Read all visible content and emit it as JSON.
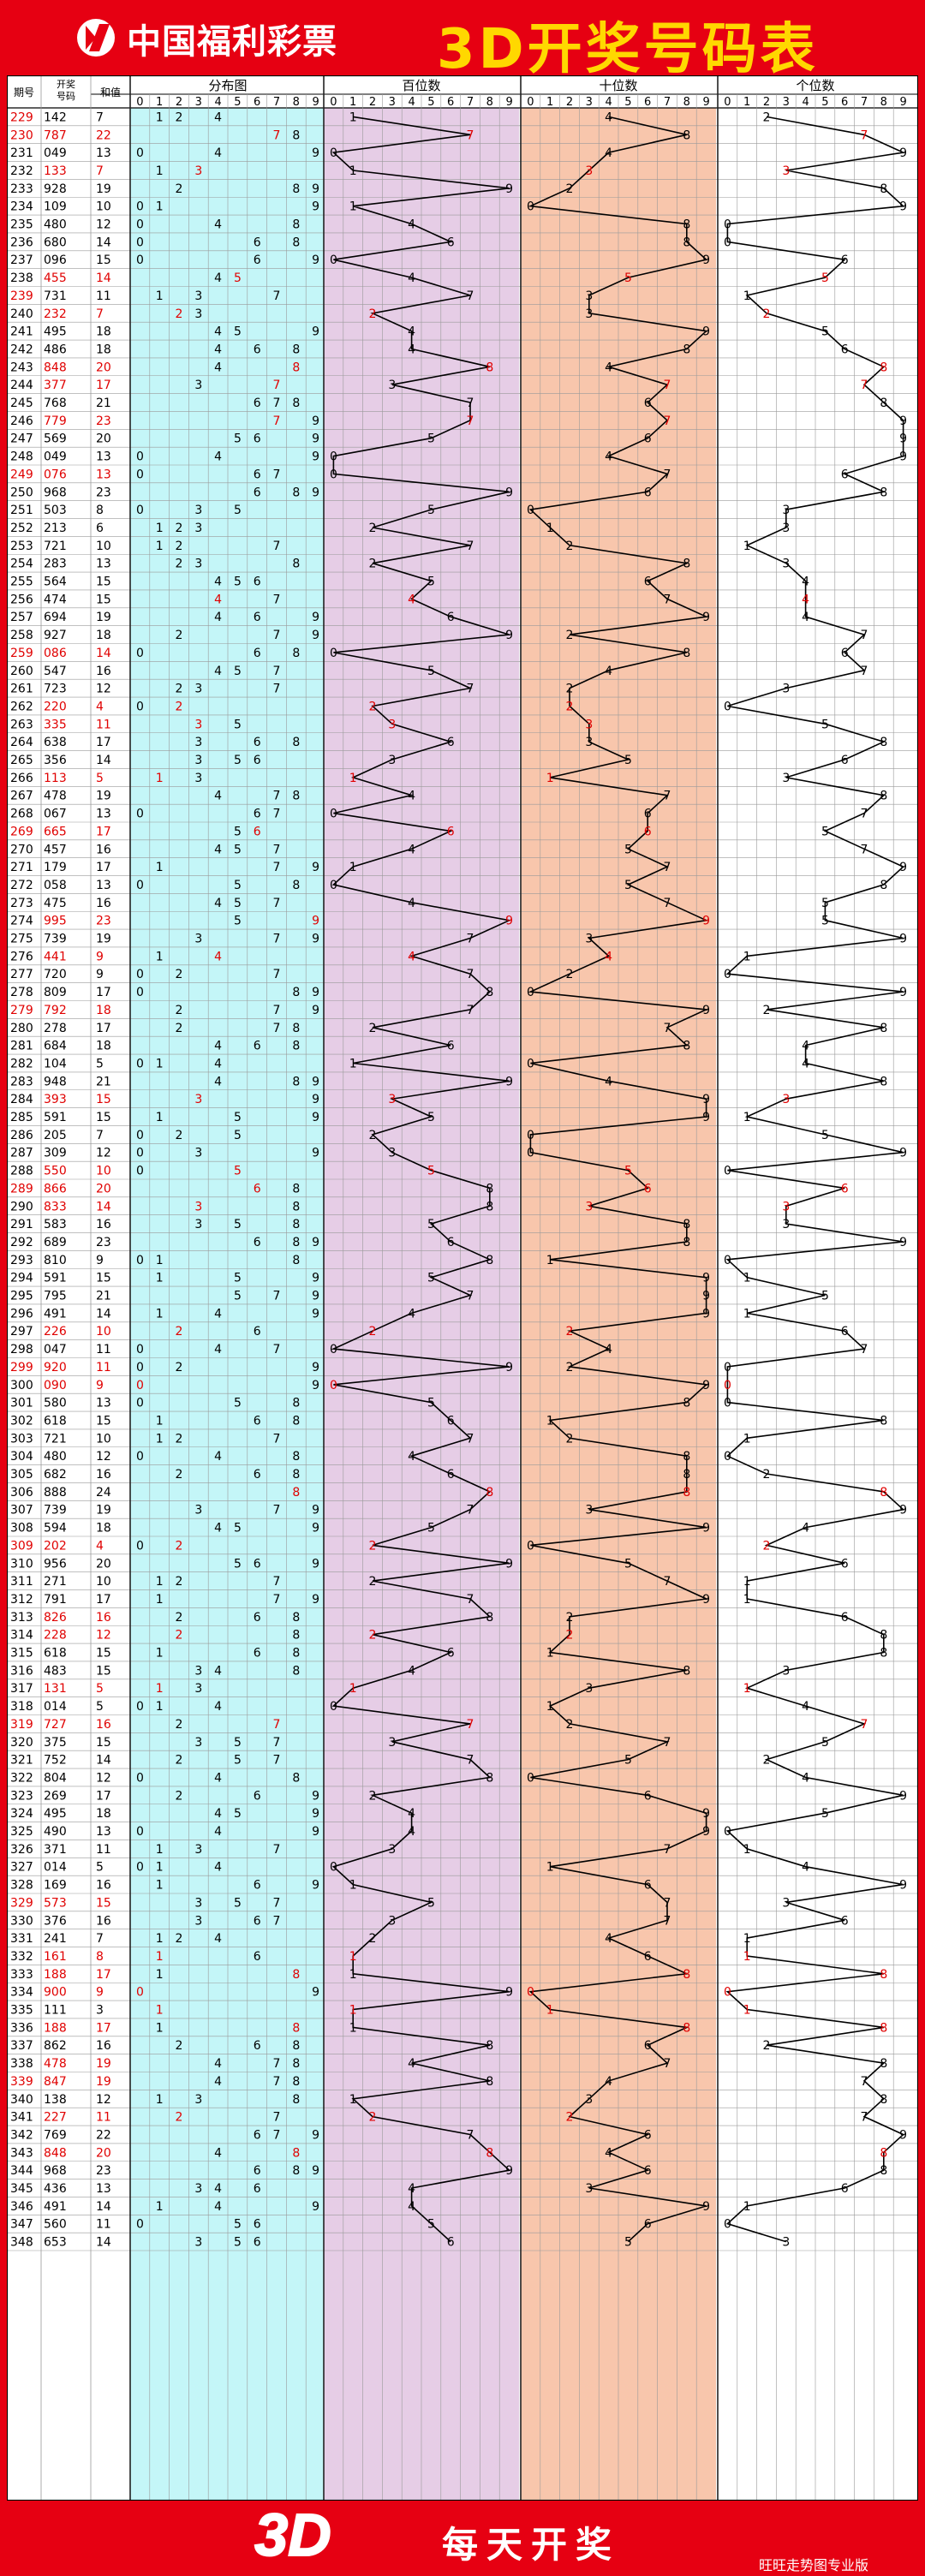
{
  "header": {
    "brand": "中国福利彩票",
    "title": "3D开奖号码表"
  },
  "footer": {
    "big": "3D",
    "slogan": "每天开奖",
    "credit": "旺旺走势图专业版"
  },
  "colors": {
    "accent": "#e60012",
    "gold": "#ffd800",
    "dist_bg": "#c4f6f8",
    "hundreds_bg": "#e6cde6",
    "tens_bg": "#f8c6ac",
    "ones_bg": "#ffffff",
    "grid": "#9a9a9a",
    "hit_red": "#e00000",
    "line": "#000000"
  },
  "chart_data": {
    "type": "table",
    "columns": {
      "period": "期号",
      "number": "开奖号码",
      "sum": "和值",
      "distribution": "分布图",
      "hundreds": "百位数",
      "tens": "十位数",
      "ones": "个位数"
    },
    "digit_labels": [
      "0",
      "1",
      "2",
      "3",
      "4",
      "5",
      "6",
      "7",
      "8",
      "9"
    ],
    "periods": [
      "229",
      "230",
      "231",
      "232",
      "233",
      "234",
      "235",
      "236",
      "237",
      "238",
      "239",
      "240",
      "241",
      "242",
      "243",
      "244",
      "245",
      "246",
      "247",
      "248",
      "249",
      "250",
      "251",
      "252",
      "253",
      "254",
      "255",
      "256",
      "257",
      "258",
      "259",
      "260",
      "261",
      "262",
      "263",
      "264",
      "265",
      "266",
      "267",
      "268",
      "269",
      "270",
      "271",
      "272",
      "273",
      "274",
      "275",
      "276",
      "277",
      "278",
      "279",
      "280",
      "281",
      "282",
      "283",
      "284",
      "285",
      "286",
      "287",
      "288",
      "289",
      "290",
      "291",
      "292",
      "293",
      "294",
      "295",
      "296",
      "297",
      "298",
      "299",
      "300",
      "301",
      "302",
      "303",
      "304",
      "305",
      "306",
      "307",
      "308",
      "309",
      "310",
      "311",
      "312",
      "313",
      "314",
      "315",
      "316",
      "317",
      "318",
      "319",
      "320",
      "321",
      "322",
      "323",
      "324",
      "325",
      "326",
      "327",
      "328",
      "329",
      "330",
      "331",
      "332",
      "333",
      "334",
      "335",
      "336",
      "337",
      "338",
      "339",
      "340",
      "341",
      "342",
      "343",
      "344",
      "345",
      "346",
      "347",
      "348"
    ],
    "numbers": [
      "142",
      "787",
      "049",
      "133",
      "928",
      "109",
      "480",
      "680",
      "096",
      "455",
      "731",
      "232",
      "495",
      "486",
      "848",
      "377",
      "768",
      "779",
      "569",
      "049",
      "076",
      "968",
      "503",
      "213",
      "721",
      "283",
      "564",
      "474",
      "694",
      "927",
      "086",
      "547",
      "723",
      "220",
      "335",
      "638",
      "356",
      "113",
      "478",
      "067",
      "665",
      "457",
      "179",
      "058",
      "475",
      "995",
      "739",
      "441",
      "720",
      "809",
      "792",
      "278",
      "684",
      "104",
      "948",
      "393",
      "591",
      "205",
      "309",
      "550",
      "866",
      "833",
      "583",
      "689",
      "810",
      "591",
      "795",
      "491",
      "226",
      "047",
      "920",
      "090",
      "580",
      "618",
      "721",
      "480",
      "682",
      "888",
      "739",
      "594",
      "202",
      "956",
      "271",
      "791",
      "826",
      "228",
      "618",
      "483",
      "131",
      "014",
      "727",
      "375",
      "752",
      "804",
      "269",
      "495",
      "490",
      "371",
      "014",
      "169",
      "573",
      "376",
      "241",
      "161",
      "188",
      "900",
      "111",
      "188",
      "862",
      "478",
      "847",
      "138",
      "227",
      "769",
      "848",
      "968",
      "436",
      "491",
      "560",
      "653"
    ],
    "sums": [
      "7",
      "22",
      "13",
      "7",
      "19",
      "10",
      "12",
      "14",
      "15",
      "14",
      "11",
      "7",
      "18",
      "18",
      "20",
      "17",
      "21",
      "23",
      "20",
      "13",
      "13",
      "23",
      "8",
      "6",
      "10",
      "13",
      "15",
      "15",
      "19",
      "18",
      "14",
      "16",
      "12",
      "4",
      "11",
      "17",
      "14",
      "5",
      "19",
      "13",
      "17",
      "16",
      "17",
      "13",
      "16",
      "23",
      "19",
      "9",
      "9",
      "17",
      "18",
      "17",
      "18",
      "5",
      "21",
      "15",
      "15",
      "7",
      "12",
      "10",
      "20",
      "14",
      "16",
      "23",
      "9",
      "15",
      "21",
      "14",
      "10",
      "11",
      "11",
      "9",
      "13",
      "15",
      "10",
      "12",
      "16",
      "24",
      "19",
      "18",
      "4",
      "20",
      "10",
      "17",
      "16",
      "12",
      "15",
      "15",
      "5",
      "5",
      "16",
      "15",
      "14",
      "12",
      "17",
      "18",
      "13",
      "11",
      "5",
      "16",
      "15",
      "16",
      "7",
      "8",
      "17",
      "9",
      "3",
      "17",
      "16",
      "19",
      "19",
      "12",
      "11",
      "22",
      "20",
      "23",
      "13",
      "14",
      "11",
      "14"
    ],
    "red_numbers": [
      "230",
      "232",
      "238",
      "240",
      "243",
      "244",
      "246",
      "249",
      "259",
      "262",
      "263",
      "266",
      "269",
      "274",
      "276",
      "279",
      "284",
      "288",
      "289",
      "290",
      "297",
      "299",
      "300",
      "309",
      "313",
      "314",
      "317",
      "319",
      "329",
      "332",
      "333",
      "334",
      "336",
      "338",
      "339",
      "341",
      "343"
    ],
    "red_periods": [
      "229",
      "230",
      "239",
      "249",
      "259",
      "269",
      "279",
      "289",
      "299",
      "309",
      "319",
      "329",
      "339"
    ]
  }
}
